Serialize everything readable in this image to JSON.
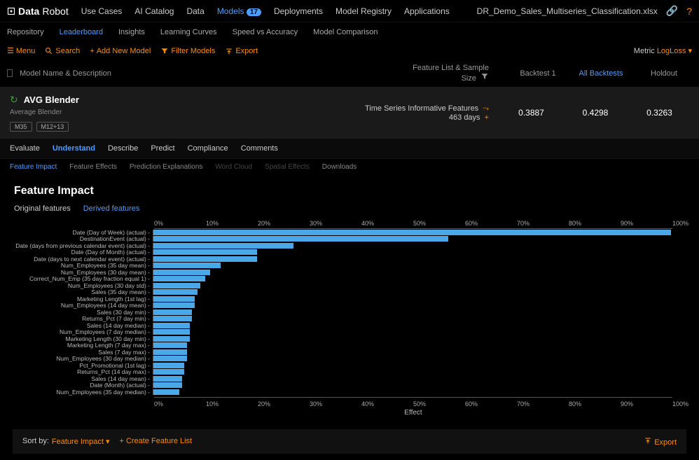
{
  "brand": {
    "bold": "Data",
    "thin": "Robot"
  },
  "topnav": {
    "items": [
      "Use Cases",
      "AI Catalog",
      "Data",
      "Models",
      "Deployments",
      "Model Registry",
      "Applications"
    ],
    "active_index": 3,
    "models_badge": "17",
    "file": "DR_Demo_Sales_Multiseries_Classification.xlsx"
  },
  "subtabs": {
    "items": [
      "Repository",
      "Leaderboard",
      "Insights",
      "Learning Curves",
      "Speed vs Accuracy",
      "Model Comparison"
    ],
    "active_index": 1
  },
  "toolbar": {
    "menu": "Menu",
    "search": "Search",
    "add": "Add New Model",
    "filter": "Filter Models",
    "export": "Export",
    "metric_label": "Metric",
    "metric_value": "LogLoss"
  },
  "cols": {
    "name": "Model Name & Description",
    "fl": "Feature List & Sample Size",
    "b1": "Backtest 1",
    "ab": "All Backtests",
    "ho": "Holdout"
  },
  "model": {
    "title": "AVG Blender",
    "subtitle": "Average Blender",
    "tags": [
      "M35",
      "M12+13"
    ],
    "info_line1": "Time Series Informative Features",
    "info_line2": "463 days",
    "b1": "0.3887",
    "ab": "0.4298",
    "ho": "0.3263"
  },
  "model_tabs": {
    "items": [
      "Evaluate",
      "Understand",
      "Describe",
      "Predict",
      "Compliance",
      "Comments"
    ],
    "active_index": 1
  },
  "sub_model_tabs": {
    "items": [
      "Feature Impact",
      "Feature Effects",
      "Prediction Explanations",
      "Word Cloud",
      "Spatial Effects",
      "Downloads"
    ],
    "active_index": 0,
    "disabled": [
      3,
      4
    ]
  },
  "chart": {
    "title": "Feature Impact",
    "feat_tabs": [
      "Original features",
      "Derived features"
    ],
    "feat_active": 1,
    "ticks": [
      "0%",
      "10%",
      "20%",
      "30%",
      "40%",
      "50%",
      "60%",
      "70%",
      "80%",
      "90%",
      "100%"
    ],
    "xlabel": "Effect",
    "bar_color": "#4aa8e8",
    "features": [
      {
        "label": "Date (Day of Week) (actual)",
        "value": 100
      },
      {
        "label": "DestinationEvent (actual)",
        "value": 57
      },
      {
        "label": "Date (days from previous calendar event) (actual)",
        "value": 27
      },
      {
        "label": "Date (Day of Month) (actual)",
        "value": 20
      },
      {
        "label": "Date (days to next calendar event) (actual)",
        "value": 20
      },
      {
        "label": "Num_Employees (35 day mean)",
        "value": 13
      },
      {
        "label": "Num_Employees (30 day mean)",
        "value": 11
      },
      {
        "label": "Correct_Num_Emp (35 day fraction equal 1)",
        "value": 10
      },
      {
        "label": "Num_Employees (30 day std)",
        "value": 9
      },
      {
        "label": "Sales (35 day mean)",
        "value": 8.5
      },
      {
        "label": "Marketing Length (1st lag)",
        "value": 8
      },
      {
        "label": "Num_Employees (14 day mean)",
        "value": 8
      },
      {
        "label": "Sales (30 day min)",
        "value": 7.5
      },
      {
        "label": "Returns_Pct (7 day min)",
        "value": 7.5
      },
      {
        "label": "Sales (14 day median)",
        "value": 7
      },
      {
        "label": "Num_Employees (7 day median)",
        "value": 7
      },
      {
        "label": "Marketing Length (30 day min)",
        "value": 7
      },
      {
        "label": "Marketing Length (7 day max)",
        "value": 6.5
      },
      {
        "label": "Sales (7 day max)",
        "value": 6.5
      },
      {
        "label": "Num_Employees (30 day median)",
        "value": 6.5
      },
      {
        "label": "Pct_Promotional (1st lag)",
        "value": 6
      },
      {
        "label": "Returns_Pct (14 day max)",
        "value": 6
      },
      {
        "label": "Sales (14 day mean)",
        "value": 5.5
      },
      {
        "label": "Date (Month) (actual)",
        "value": 5.5
      },
      {
        "label": "Num_Employees (35 day median)",
        "value": 5
      }
    ]
  },
  "footer": {
    "sort_label": "Sort by:",
    "sort_value": "Feature Impact",
    "create": "Create Feature List",
    "export": "Export"
  }
}
